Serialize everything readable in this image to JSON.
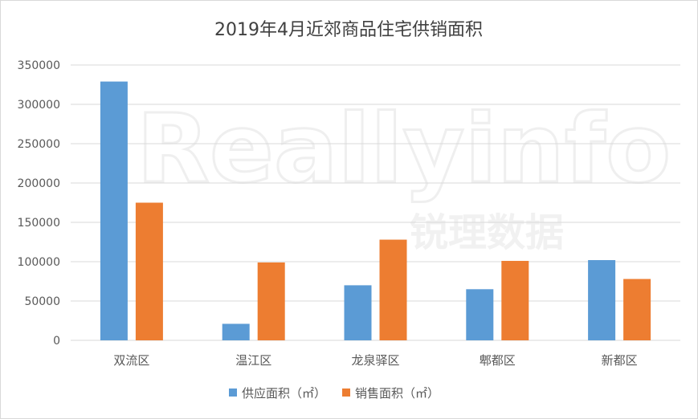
{
  "chart_data": {
    "type": "bar",
    "title": "2019年4月近郊商品住宅供销面积",
    "categories": [
      "双流区",
      "温江区",
      "龙泉驿区",
      "郫都区",
      "新都区"
    ],
    "series": [
      {
        "name": "供应面积（㎡）",
        "color": "#5b9bd5",
        "values": [
          329000,
          21000,
          70000,
          65000,
          102000
        ]
      },
      {
        "name": "销售面积（㎡）",
        "color": "#ed7d31",
        "values": [
          175000,
          99000,
          128000,
          101000,
          78000
        ]
      }
    ],
    "ylim": [
      0,
      350000
    ],
    "yticks": [
      0,
      50000,
      100000,
      150000,
      200000,
      250000,
      300000,
      350000
    ],
    "grid": true,
    "legend_position": "bottom",
    "watermark": {
      "latin": "Reallyinfo",
      "chinese": "锐理数据"
    }
  }
}
